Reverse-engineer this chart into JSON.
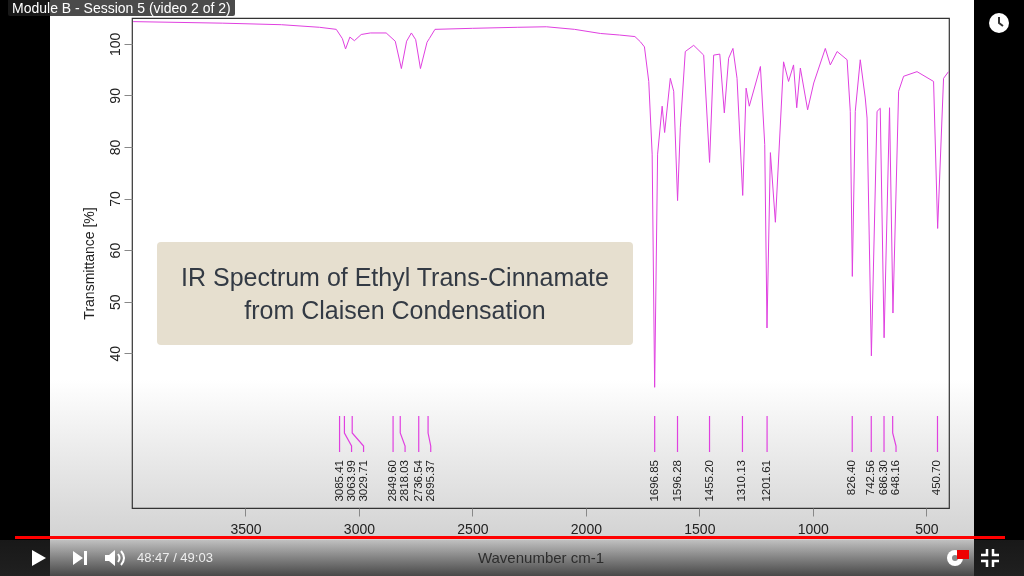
{
  "chart_data": {
    "type": "line",
    "title": "IR Spectrum of Ethyl Trans-Cinnamate from Claisen Condensation",
    "xlabel": "Wavenumber cm-1",
    "ylabel": "Transmittance [%]",
    "color": "#e040e0",
    "xlim": [
      4000,
      400
    ],
    "xticks": [
      3500,
      3000,
      2500,
      2000,
      1500,
      1000,
      500
    ],
    "ylim": [
      10,
      105
    ],
    "yticks": [
      40,
      50,
      60,
      70,
      80,
      90,
      100
    ],
    "grid": false,
    "x": [
      3995,
      3600,
      3341,
      3174,
      3100,
      3073,
      3059,
      3040,
      3020,
      2990,
      2950,
      2880,
      2840,
      2813,
      2790,
      2769,
      2750,
      2729,
      2700,
      2690,
      2665,
      2500,
      2300,
      2174,
      2050,
      1936,
      1852,
      1784,
      1760,
      1742,
      1723,
      1708,
      1697,
      1684,
      1664,
      1653,
      1628,
      1613,
      1596,
      1584,
      1562,
      1525,
      1481,
      1455,
      1437,
      1410,
      1390,
      1371,
      1352,
      1334,
      1309,
      1294,
      1280,
      1231,
      1212,
      1202,
      1187,
      1165,
      1129,
      1107,
      1085,
      1071,
      1055,
      1023,
      996,
      945,
      923,
      893,
      849,
      835,
      826,
      813,
      791,
      769,
      761,
      742,
      717,
      703,
      686,
      662,
      647,
      622,
      600,
      541,
      468,
      450,
      424,
      402
    ],
    "values": [
      104.3,
      104.0,
      103.7,
      103.2,
      102.8,
      101.0,
      99.0,
      101.3,
      100.6,
      101.8,
      102.1,
      102.1,
      100.5,
      95.2,
      100.5,
      102.1,
      100.8,
      95.2,
      100.3,
      101.0,
      102.8,
      103.0,
      103.2,
      103.3,
      102.8,
      102.0,
      101.7,
      101.4,
      100.4,
      99.4,
      92.7,
      78.6,
      33.4,
      78.6,
      87.9,
      82.8,
      93.3,
      90.8,
      69.6,
      83.7,
      98.5,
      99.7,
      97.8,
      77.0,
      97.8,
      98.0,
      86.6,
      97.2,
      99.1,
      93.3,
      70.6,
      91.4,
      87.9,
      95.6,
      80.5,
      44.9,
      78.9,
      65.4,
      96.5,
      92.7,
      95.9,
      87.6,
      95.3,
      87.2,
      92.4,
      99.1,
      95.9,
      98.5,
      96.9,
      86.9,
      54.9,
      86.9,
      96.9,
      89.5,
      85.6,
      39.5,
      86.9,
      87.5,
      43.0,
      87.6,
      47.8,
      90.8,
      93.7,
      94.6,
      92.7,
      64.2,
      93.3,
      94.6
    ],
    "annotations": [
      "Module B - Session 5 (video 2 of 2)",
      "48:47 / 49:03",
      {
        "text": "3085.41",
        "x": 3085.41
      },
      {
        "text": "3063.99",
        "x": 3063.99
      },
      {
        "text": "3029.71",
        "x": 3029.71
      },
      {
        "text": "2849.60",
        "x": 2849.6
      },
      {
        "text": "2818.03",
        "x": 2818.03
      },
      {
        "text": "2736.54",
        "x": 2736.54
      },
      {
        "text": "2695.37",
        "x": 2695.37
      },
      {
        "text": "1696.85",
        "x": 1696.85
      },
      {
        "text": "1596.28",
        "x": 1596.28
      },
      {
        "text": "1455.20",
        "x": 1455.2
      },
      {
        "text": "1310.13",
        "x": 1310.13
      },
      {
        "text": "1201.61",
        "x": 1201.61
      },
      {
        "text": "826.40",
        "x": 826.4
      },
      {
        "text": "742.56",
        "x": 742.56
      },
      {
        "text": "686.30",
        "x": 686.3
      },
      {
        "text": "648.16",
        "x": 648.16
      },
      {
        "text": "450.70",
        "x": 450.7
      }
    ]
  }
}
